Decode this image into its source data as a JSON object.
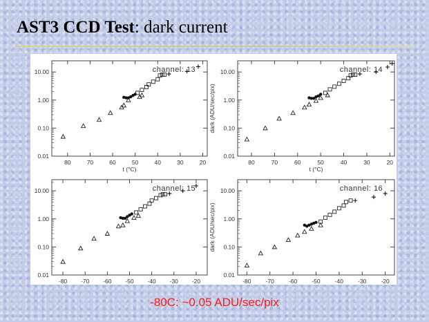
{
  "slide": {
    "title_bold": "AST3 CCD Test",
    "title_rest": ": dark current",
    "caption": "-80C: ~0.05 ADU/sec/pix"
  },
  "chart_data": [
    {
      "type": "scatter",
      "title": "channel: 13",
      "xlabel": "t (°C)",
      "ylabel": "",
      "xlim": [
        -87,
        -18
      ],
      "ylim": [
        0.01,
        25
      ],
      "log_y": true,
      "x_ticks": [
        -80,
        -70,
        -60,
        -50,
        -40,
        -30,
        -20
      ],
      "x_tick_labels": [
        "80",
        "70",
        "60",
        "50",
        "40",
        "30",
        "20"
      ],
      "y_ticks": [
        0.01,
        0.1,
        1,
        10
      ],
      "y_tick_labels": [
        "0.01",
        "0.10",
        "1.00",
        "10.00"
      ],
      "series": [
        {
          "marker": "triangle",
          "x": [
            -82,
            -73,
            -66,
            -61,
            -56,
            -55,
            -53,
            -48,
            -47
          ],
          "y": [
            0.05,
            0.12,
            0.2,
            0.35,
            0.55,
            0.65,
            1.0,
            1.3,
            1.5
          ]
        },
        {
          "marker": "dot",
          "x": [
            -55,
            -54,
            -53,
            -52,
            -51,
            -50
          ],
          "y": [
            1.25,
            1.2,
            1.2,
            1.3,
            1.45,
            1.6
          ]
        },
        {
          "marker": "square",
          "x": [
            -49,
            -47,
            -45,
            -44,
            -42,
            -40,
            -39,
            -38,
            -37
          ],
          "y": [
            1.8,
            2.3,
            2.9,
            3.6,
            4.5,
            5.5,
            7.5,
            8.0,
            8.0
          ]
        },
        {
          "marker": "plus",
          "x": [
            -35,
            -27,
            -22
          ],
          "y": [
            8.5,
            10.5,
            15.5
          ]
        }
      ]
    },
    {
      "type": "scatter",
      "title": "channel: 14",
      "xlabel": "t (°C)",
      "ylabel": "dark (ADU/sec/pix)",
      "xlim": [
        -86,
        -18
      ],
      "ylim": [
        0.01,
        25
      ],
      "log_y": true,
      "x_ticks": [
        -80,
        -70,
        -60,
        -50,
        -40,
        -30,
        -20
      ],
      "x_tick_labels": [
        "80",
        "70",
        "60",
        "50",
        "40",
        "30",
        "20"
      ],
      "y_ticks": [
        0.01,
        0.1,
        1,
        10
      ],
      "y_tick_labels": [
        "0.01",
        "0.10",
        "1.00",
        "10.00"
      ],
      "series": [
        {
          "marker": "triangle",
          "x": [
            -82,
            -74,
            -68,
            -62,
            -57,
            -55,
            -52,
            -50,
            -47
          ],
          "y": [
            0.04,
            0.1,
            0.22,
            0.35,
            0.55,
            0.7,
            0.95,
            1.2,
            1.5
          ]
        },
        {
          "marker": "dot",
          "x": [
            -55,
            -54,
            -53,
            -52,
            -51,
            -50
          ],
          "y": [
            1.2,
            1.15,
            1.15,
            1.3,
            1.4,
            1.6
          ]
        },
        {
          "marker": "square",
          "x": [
            -48,
            -46,
            -44,
            -42,
            -40,
            -38,
            -37,
            -36,
            -35
          ],
          "y": [
            1.8,
            2.4,
            3.0,
            3.8,
            4.8,
            6.0,
            7.5,
            8.0,
            8.0
          ]
        },
        {
          "marker": "plus",
          "x": [
            -33,
            -26,
            -21,
            -19
          ],
          "y": [
            8.5,
            10.0,
            15.0,
            20.0
          ]
        }
      ]
    },
    {
      "type": "scatter",
      "title": "channel: 15",
      "xlabel": "",
      "ylabel": "",
      "xlim": [
        -85,
        -15
      ],
      "ylim": [
        0.01,
        25
      ],
      "log_y": true,
      "x_ticks": [
        -80,
        -70,
        -60,
        -50,
        -40,
        -30,
        -20
      ],
      "x_tick_labels": [
        "-80",
        "-70",
        "-60",
        "-50",
        "-40",
        "-30",
        "-20"
      ],
      "y_ticks": [
        0.01,
        0.1,
        1,
        10
      ],
      "y_tick_labels": [
        "0.01",
        "0.10",
        "1.00",
        "10.00"
      ],
      "series": [
        {
          "marker": "triangle",
          "x": [
            -80,
            -72,
            -66,
            -60,
            -55,
            -53,
            -51,
            -48,
            -46
          ],
          "y": [
            0.03,
            0.09,
            0.2,
            0.3,
            0.55,
            0.6,
            0.85,
            1.1,
            1.3
          ]
        },
        {
          "marker": "dot",
          "x": [
            -54,
            -53,
            -52,
            -51,
            -50,
            -49
          ],
          "y": [
            1.1,
            1.05,
            1.05,
            1.2,
            1.35,
            1.5
          ]
        },
        {
          "marker": "square",
          "x": [
            -47,
            -45,
            -43,
            -41,
            -40,
            -38,
            -36,
            -35,
            -34
          ],
          "y": [
            1.7,
            2.2,
            2.8,
            3.5,
            4.5,
            5.5,
            7.0,
            7.5,
            7.5
          ]
        },
        {
          "marker": "plus",
          "x": [
            -32,
            -26,
            -20
          ],
          "y": [
            8.0,
            10.0,
            15.0
          ]
        }
      ]
    },
    {
      "type": "scatter",
      "title": "channel: 16",
      "xlabel": "",
      "ylabel": "dark (ADU/sec/pix)",
      "xlim": [
        -84,
        -16
      ],
      "ylim": [
        0.01,
        25
      ],
      "log_y": true,
      "x_ticks": [
        -80,
        -70,
        -60,
        -50,
        -40,
        -30,
        -20
      ],
      "x_tick_labels": [
        "-80",
        "-70",
        "-60",
        "-50",
        "-40",
        "-30",
        "-20"
      ],
      "y_ticks": [
        0.01,
        0.1,
        1,
        10
      ],
      "y_tick_labels": [
        "0.01",
        "0.10",
        "1.00",
        "10.00"
      ],
      "series": [
        {
          "marker": "triangle",
          "x": [
            -80,
            -74,
            -68,
            -62,
            -58,
            -55,
            -52,
            -48
          ],
          "y": [
            0.022,
            0.06,
            0.1,
            0.18,
            0.26,
            0.35,
            0.45,
            0.6
          ]
        },
        {
          "marker": "dot",
          "x": [
            -55,
            -54,
            -53,
            -52,
            -51,
            -50
          ],
          "y": [
            0.6,
            0.55,
            0.6,
            0.65,
            0.7,
            0.75
          ]
        },
        {
          "marker": "square",
          "x": [
            -48,
            -46,
            -44,
            -42,
            -40,
            -38,
            -37,
            -35
          ],
          "y": [
            0.8,
            1.1,
            1.4,
            1.8,
            2.4,
            3.0,
            4.0,
            4.5
          ]
        },
        {
          "marker": "plus",
          "x": [
            -33,
            -25,
            -20
          ],
          "y": [
            4.5,
            6.0,
            8.0
          ]
        }
      ]
    }
  ]
}
